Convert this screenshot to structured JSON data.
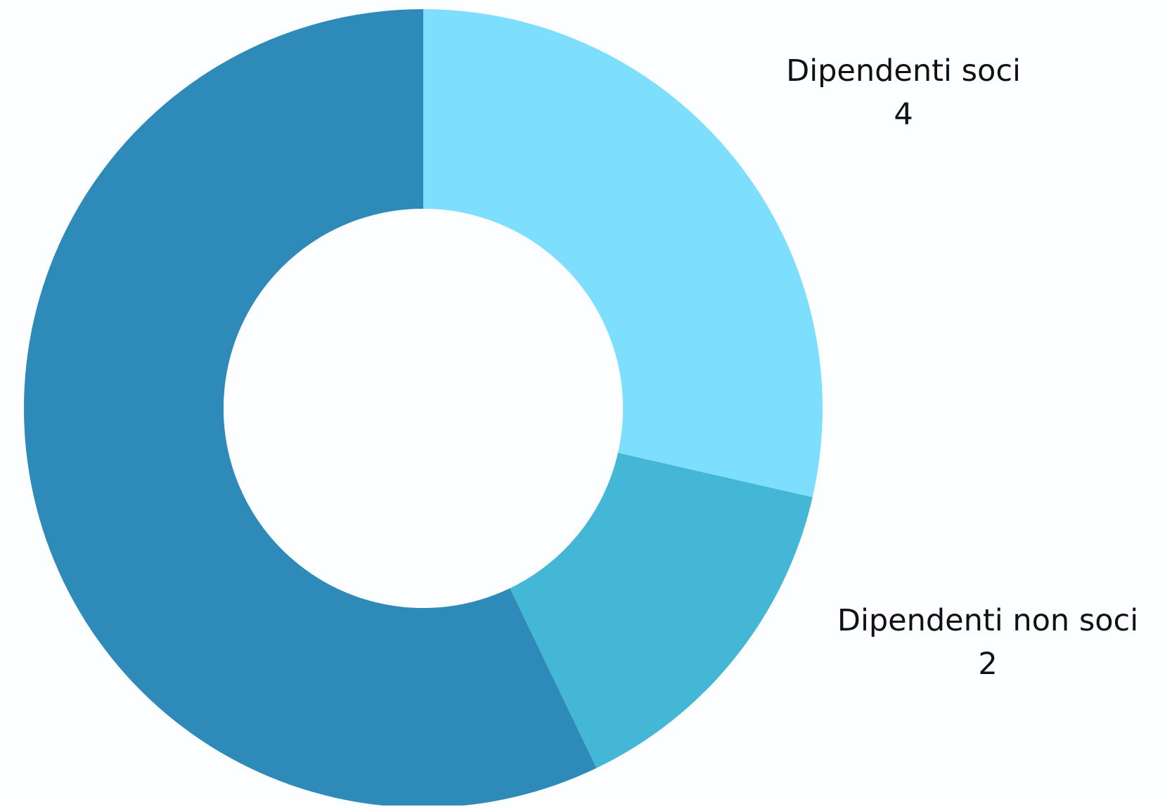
{
  "chart_data": {
    "type": "pie",
    "donut": true,
    "start_angle_deg": 0,
    "direction": "clockwise",
    "title": "",
    "slices": [
      {
        "name": "Dipendenti soci",
        "value": 4,
        "color": "#7ddffd",
        "label": "Dipendenti soci",
        "value_label": "4"
      },
      {
        "name": "Dipendenti non soci",
        "value": 2,
        "color": "#44b6d6",
        "label": "Dipendenti non soci",
        "value_label": "2"
      },
      {
        "name": "",
        "value": 8,
        "color": "#2e8ab8",
        "label": "",
        "value_label": ""
      }
    ],
    "legend": "none",
    "background": "#fdfeff"
  }
}
